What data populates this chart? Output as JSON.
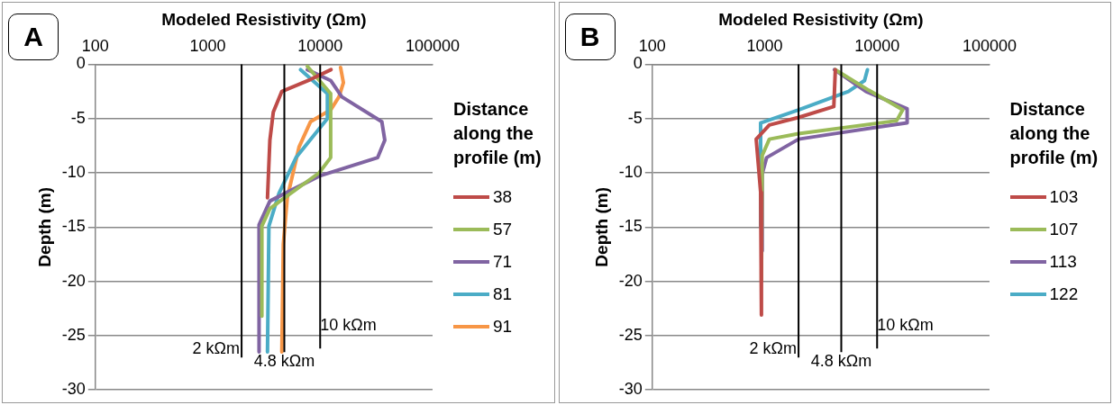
{
  "chart_data": [
    {
      "type": "line",
      "annotations": [
        "A"
      ],
      "xlabel": "Modeled Resistivity (Ωm)",
      "ylabel": "Depth (m)",
      "legend_title": "Distance along the profile (m)",
      "legend": "right",
      "log": "x",
      "grid": "y",
      "xlim": [
        100,
        100000
      ],
      "xticks": [
        100,
        1000,
        10000,
        100000
      ],
      "ylim": [
        -30,
        0
      ],
      "yticks": [
        0,
        -5,
        -10,
        -15,
        -20,
        -25,
        -30
      ],
      "ref_lines": [
        {
          "axis": "x",
          "value": 2000,
          "label": "2 kΩm",
          "color": "#000000"
        },
        {
          "axis": "x",
          "value": 4800,
          "label": "4.8 kΩm",
          "color": "#000000"
        },
        {
          "axis": "x",
          "value": 10000,
          "label": "10 kΩm",
          "color": "#000000"
        }
      ],
      "series": [
        {
          "name": "38",
          "color": "#be4b48",
          "x": [
            12500,
            8200,
            4560,
            3830,
            3570,
            3400
          ],
          "values": [
            -0.5,
            -1.4,
            -2.5,
            -4.4,
            -7,
            -12.3
          ]
        },
        {
          "name": "57",
          "color": "#9bbb59",
          "x": [
            7700,
            12400,
            12400,
            9800,
            4840,
            3570,
            3030,
            3030
          ],
          "values": [
            -0.2,
            -2.7,
            -8.6,
            -10,
            -12.3,
            -13.3,
            -14.9,
            -23.2
          ]
        },
        {
          "name": "71",
          "color": "#8064a2",
          "x": [
            7700,
            12400,
            15600,
            35400,
            37600,
            32500,
            9800,
            3570,
            2860,
            2860
          ],
          "values": [
            -0.5,
            -1.5,
            -3,
            -5.3,
            -7,
            -8.6,
            -10.3,
            -12.6,
            -14.8,
            -26.5
          ]
        },
        {
          "name": "81",
          "color": "#4bacc6",
          "x": [
            6700,
            11600,
            11600,
            6100,
            4300,
            3500,
            3400
          ],
          "values": [
            -0.5,
            -2.7,
            -5,
            -8.6,
            -11.9,
            -14.9,
            -26.5
          ]
        },
        {
          "name": "91",
          "color": "#f79646",
          "x": [
            15200,
            16100,
            14700,
            12400,
            8200,
            6500,
            5100,
            4700,
            4560
          ],
          "values": [
            -0.3,
            -1.7,
            -3,
            -4.2,
            -5.3,
            -7.6,
            -12.3,
            -16.6,
            -26.5
          ]
        }
      ]
    },
    {
      "type": "line",
      "annotations": [
        "B"
      ],
      "xlabel": "Modeled Resistivity (Ωm)",
      "ylabel": "Depth (m)",
      "legend_title": "Distance along the profile (m)",
      "legend": "right",
      "log": "x",
      "grid": "y",
      "xlim": [
        100,
        100000
      ],
      "xticks": [
        100,
        1000,
        10000,
        100000
      ],
      "ylim": [
        -30,
        0
      ],
      "yticks": [
        0,
        -5,
        -10,
        -15,
        -20,
        -25,
        -30
      ],
      "ref_lines": [
        {
          "axis": "x",
          "value": 2000,
          "label": "2 kΩm",
          "color": "#000000"
        },
        {
          "axis": "x",
          "value": 4800,
          "label": "4.8 kΩm",
          "color": "#000000"
        },
        {
          "axis": "x",
          "value": 10000,
          "label": "10 kΩm",
          "color": "#000000"
        }
      ],
      "series": [
        {
          "name": "103",
          "color": "#be4b48",
          "x": [
            4250,
            4120,
            2000,
            1100,
            840,
            920,
            935
          ],
          "values": [
            -0.5,
            -3.9,
            -4.9,
            -5.6,
            -6.9,
            -11.8,
            -23.1
          ]
        },
        {
          "name": "107",
          "color": "#9bbb59",
          "x": [
            4250,
            8450,
            16900,
            14900,
            2000,
            1100,
            950,
            935
          ],
          "values": [
            -0.5,
            -2.4,
            -4.2,
            -5.2,
            -6.4,
            -6.9,
            -8.4,
            -19.9
          ]
        },
        {
          "name": "113",
          "color": "#8064a2",
          "x": [
            4170,
            7960,
            18500,
            18500,
            10100,
            4790,
            2000,
            1040,
            950,
            950
          ],
          "values": [
            -0.5,
            -2.5,
            -4.1,
            -5.4,
            -5.8,
            -6.3,
            -6.9,
            -8.6,
            -10.1,
            -17.2
          ]
        },
        {
          "name": "122",
          "color": "#4bacc6",
          "x": [
            8200,
            7730,
            5560,
            2000,
            920,
            920
          ],
          "values": [
            -0.5,
            -1.5,
            -2.5,
            -4.2,
            -5.4,
            -14.9
          ]
        }
      ]
    }
  ]
}
